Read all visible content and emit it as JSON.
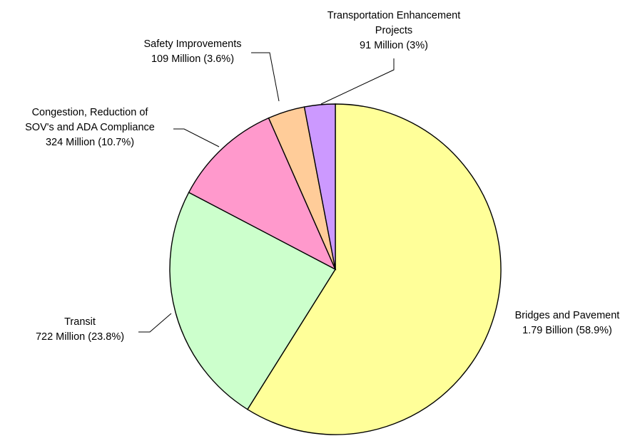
{
  "chart_data": {
    "type": "pie",
    "title": "",
    "slices": [
      {
        "name": "Bridges and Pavement",
        "value_label": "1.79 Billion (58.9%)",
        "value": 1790,
        "percent": 58.9,
        "color": "#ffff99"
      },
      {
        "name": "Transit",
        "value_label": "722 Million (23.8%)",
        "value": 722,
        "percent": 23.8,
        "color": "#ccffcc"
      },
      {
        "name": "Congestion, Reduction of SOV's and ADA Compliance",
        "value_label": "324 Million (10.7%)",
        "value": 324,
        "percent": 10.7,
        "color": "#ff99cc"
      },
      {
        "name": "Safety Improvements",
        "value_label": "109 Million (3.6%)",
        "value": 109,
        "percent": 3.6,
        "color": "#ffcc99"
      },
      {
        "name": "Transportation Enhancement Projects",
        "value_label": "91 Million (3%)",
        "value": 91,
        "percent": 3.0,
        "color": "#cc99ff"
      }
    ],
    "labels": [
      [
        "Bridges and Pavement",
        "1.79 Billion (58.9%)"
      ],
      [
        "Transit",
        "722 Million (23.8%)"
      ],
      [
        "Congestion, Reduction of",
        "SOV's and ADA Compliance",
        "324 Million (10.7%)"
      ],
      [
        "Safety Improvements",
        "109 Million (3.6%)"
      ],
      [
        "Transportation Enhancement",
        "Projects",
        "91 Million (3%)"
      ]
    ]
  }
}
